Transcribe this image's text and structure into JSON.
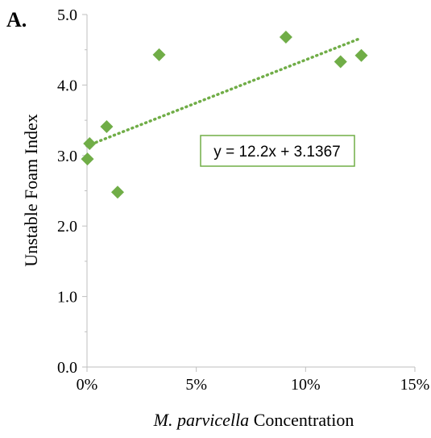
{
  "chart_data": {
    "type": "scatter",
    "panel_label": "A.",
    "xlabel_italic": "M. parvicella",
    "xlabel_rest": " Concentration",
    "ylabel": "Unstable Foam Index",
    "xlim": [
      0,
      0.15
    ],
    "ylim": [
      0,
      5.0
    ],
    "x_ticks": [
      0,
      0.05,
      0.1,
      0.15
    ],
    "x_tick_labels": [
      "0%",
      "5%",
      "10%",
      "15%"
    ],
    "y_ticks": [
      0,
      1.0,
      2.0,
      3.0,
      4.0,
      5.0
    ],
    "y_tick_labels": [
      "0.0",
      "1.0",
      "2.0",
      "3.0",
      "4.0",
      "5.0"
    ],
    "grid": false,
    "series": [
      {
        "marker": "diamond",
        "color": "#70AD47",
        "x": [
          0.0002,
          0.0012,
          0.009,
          0.014,
          0.033,
          0.091,
          0.116,
          0.1255
        ],
        "y": [
          2.95,
          3.17,
          3.41,
          2.48,
          4.43,
          4.68,
          4.33,
          4.42
        ]
      }
    ],
    "trendline": {
      "style": "dotted",
      "color": "#70AD47",
      "slope": 12.2,
      "intercept": 3.1367,
      "x_range": [
        0,
        0.1255
      ],
      "equation_label": "y = 12.2x + 3.1367"
    }
  }
}
